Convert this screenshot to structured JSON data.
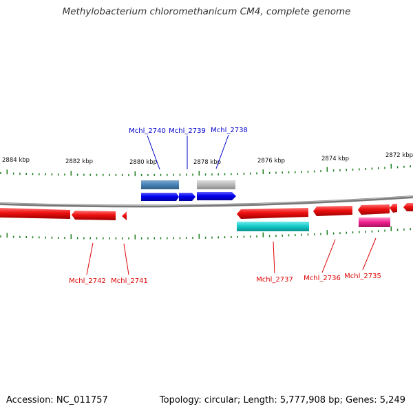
{
  "title": "Methylobacterium chloromethanicum CM4, complete genome",
  "footer": {
    "accession": "Accession: NC_011757",
    "summary": "Topology: circular; Length: 5,777,908 bp; Genes: 5,249"
  },
  "colors": {
    "backbone": "#808080",
    "tick": "#1a7a1a",
    "forward_gene": "#0000ee",
    "reverse_gene": "#ee1010",
    "label_forward": "#0000cc",
    "label_reverse": "#dd0000",
    "feature_steelblue": "#4682b4",
    "feature_gray": "#b8b8b8",
    "feature_cyan": "#12c8c8",
    "feature_magenta": "#ee1e8c"
  },
  "scale_labels": [
    "2884 kbp",
    "2882 kbp",
    "2880 kbp",
    "2878 kbp",
    "2876 kbp",
    "2874 kbp",
    "2872 kbp"
  ],
  "gene_labels_forward": [
    "Mchl_2740",
    "Mchl_2739",
    "Mchl_2738"
  ],
  "gene_labels_reverse": [
    "Mchl_2742",
    "Mchl_2741",
    "Mchl_2737",
    "Mchl_2736",
    "Mchl_2735"
  ]
}
